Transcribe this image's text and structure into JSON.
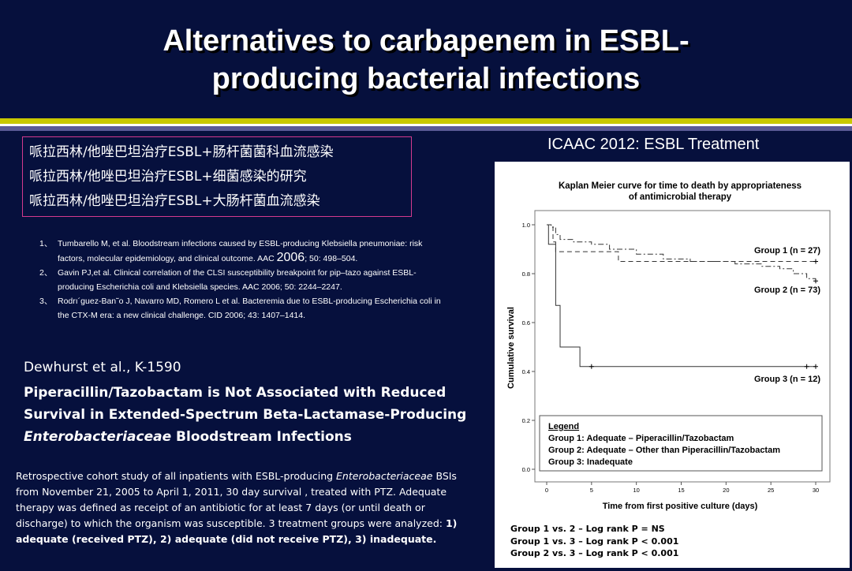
{
  "slide": {
    "title_line1": "Alternatives to carbapenem in ESBL-",
    "title_line2": "producing bacterial infections"
  },
  "chinese_items": [
    "哌拉西林/他唑巴坦治疗ESBL+肠杆菌菌科血流感染",
    "哌拉西林/他唑巴坦治疗ESBL+细菌感染的研究",
    "哌拉西林/他唑巴坦治疗ESBL+大肠杆菌血流感染"
  ],
  "references": [
    {
      "num": "1、",
      "line1": "Tumbarello M, et al. Bloodstream infections caused by ESBL-producing Klebsiella pneumoniae: risk",
      "line2_pre": "factors, molecular epidemiology, and clinical outcome. AAC ",
      "line2_year": "2006",
      "line2_post": "; 50: 498–504."
    },
    {
      "num": "2、",
      "line1": "Gavin PJ,et al. Clinical correlation of the CLSI susceptibility breakpoint for pip–tazo against ESBL-",
      "line2_pre": "producing Escherichia coli and Klebsiella species. AAC 2006; 50: 2244–2247.",
      "line2_year": "",
      "line2_post": ""
    },
    {
      "num": "3、",
      "line1": "Rodrı´guez-Ban˜o J, Navarro MD, Romero L et al.  Bacteremia due to ESBL-producing Escherichia coli in",
      "line2_pre": "the CTX-M era: a new clinical challenge. CID 2006; 43: 1407–1414.",
      "line2_year": "",
      "line2_post": ""
    }
  ],
  "abstract": {
    "author": "Dewhurst et al., K-1590",
    "title_line1": "Piperacillin/Tazobactam is Not Associated with Reduced",
    "title_line2": "Survival in Extended-Spectrum Beta-Lactamase-Producing",
    "title_line3_italic": "Enterobacteriaceae",
    "title_line3_rest": " Bloodstream Infections"
  },
  "study": {
    "t1": "Retrospective cohort study of all inpatients with ESBL-producing ",
    "t1_italic": "Enterobacteriaceae",
    "t1_post": " BSIs",
    "t2": "from November 21, 2005 to April 1, 2011, 30 day survival ,  treated with PTZ. Adequate",
    "t3": "therapy was defined as receipt of an antibiotic for at least 7 days (or until death or",
    "t4_pre": "discharge) to which the organism was susceptible. 3 treatment groups were analyzed: ",
    "t4_bold": "1)",
    "t5_bold": "adequate (received PTZ), 2) adequate (did not receive PTZ), 3) inadequate."
  },
  "icaac_label": "ICAAC 2012: ESBL Treatment",
  "chart_data": {
    "type": "line",
    "title": "Kaplan Meier curve for time to death by appropriateness of antimicrobial therapy",
    "title_line1": "Kaplan Meier curve for time to death by appropriateness",
    "title_line2": "of antimicrobial therapy",
    "xlabel": "Time from first positive culture (days)",
    "ylabel": "Cumulative survival",
    "xlim": [
      0,
      30
    ],
    "ylim": [
      0,
      1.0
    ],
    "xticks": [
      "0",
      "5",
      "10",
      "15",
      "20",
      "25",
      "30"
    ],
    "yticks": [
      "0.0",
      "0.2",
      "0.4",
      "0.6",
      "0.8",
      "1.0"
    ],
    "series": [
      {
        "name": "Group 1 (n = 27)",
        "style": "dashed",
        "x": [
          0,
          0.7,
          0.7,
          1.0,
          1.0,
          8.0,
          8.0,
          30.0
        ],
        "y": [
          1.0,
          1.0,
          0.93,
          0.93,
          0.89,
          0.89,
          0.85,
          0.85
        ]
      },
      {
        "name": "Group 2 (n = 73)",
        "style": "dashdot",
        "x": [
          0,
          0.5,
          0.5,
          1.0,
          1.0,
          1.5,
          1.5,
          3.0,
          3.0,
          5.0,
          5.0,
          7.0,
          7.0,
          10.0,
          10.0,
          13.0,
          13.0,
          16.0,
          16.0,
          21.0,
          21.0,
          24.0,
          24.0,
          26.0,
          26.0,
          27.5,
          27.5,
          29.0,
          29.0,
          30.0
        ],
        "y": [
          1.0,
          1.0,
          0.99,
          0.99,
          0.96,
          0.96,
          0.94,
          0.94,
          0.93,
          0.93,
          0.92,
          0.92,
          0.9,
          0.9,
          0.88,
          0.88,
          0.86,
          0.86,
          0.85,
          0.85,
          0.84,
          0.84,
          0.83,
          0.83,
          0.82,
          0.82,
          0.8,
          0.8,
          0.78,
          0.78
        ]
      },
      {
        "name": "Group 3 (n = 12)",
        "style": "solid",
        "x": [
          0,
          0.2,
          0.2,
          1.0,
          1.0,
          1.5,
          1.5,
          3.7,
          3.7,
          30.0
        ],
        "y": [
          1.0,
          1.0,
          0.92,
          0.92,
          0.67,
          0.67,
          0.5,
          0.5,
          0.42,
          0.42
        ]
      }
    ],
    "censor_marks": [
      {
        "series": 0,
        "x": 30,
        "y": 0.85
      },
      {
        "series": 1,
        "x": 30,
        "y": 0.77
      },
      {
        "series": 2,
        "x": 5,
        "y": 0.42
      },
      {
        "series": 2,
        "x": 29,
        "y": 0.42
      },
      {
        "series": 2,
        "x": 30,
        "y": 0.42
      }
    ],
    "legend": {
      "heading": "Legend",
      "entries": [
        "Group 1: Adequate – Piperacillin/Tazobactam",
        "Group 2: Adequate – Other than Piperacillin/Tazobactam",
        "Group 3: Inadequate"
      ],
      "position": "bottom"
    }
  },
  "logrank": [
    "Group 1 vs. 2 – Log rank P = NS",
    "Group 1 vs. 3 – Log rank P < 0.001",
    "Group 2 vs. 3 – Log rank P < 0.001"
  ]
}
